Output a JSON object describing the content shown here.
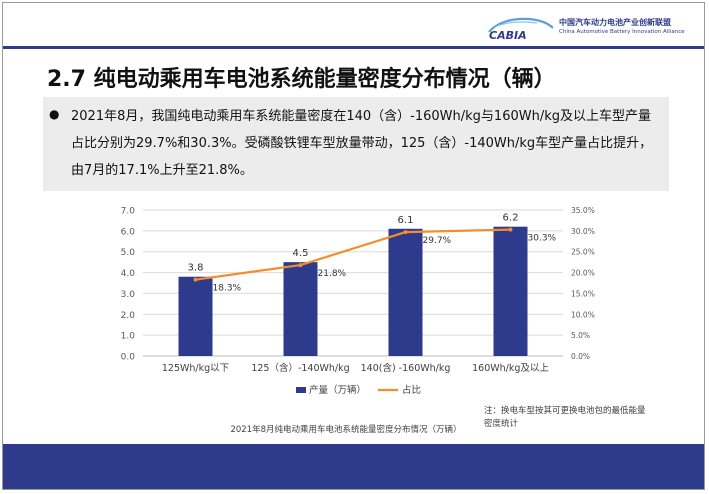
{
  "header": {
    "logo_mark": "CABIA",
    "logo_cn": "中国汽车动力电池产业创新联盟",
    "logo_en": "China Automotive Battery Innovation Alliance"
  },
  "slide": {
    "title": "2.7 纯电动乘用车电池系统能量密度分布情况（辆）",
    "bullet": "2021年8月，我国纯电动乘用车系统能量密度在140（含）-160Wh/kg与160Wh/kg及以上车型产量占比分别为29.7%和30.3%。受磷酸铁锂车型放量带动，125（含）-140Wh/kg车型产量占比提升，由7月的17.1%上升至21.8%。"
  },
  "chart_data": {
    "type": "bar+line",
    "categories": [
      "125Wh/kg以下",
      "125（含）-140Wh/kg",
      "140(含) -160Wh/kg",
      "160Wh/kg及以上"
    ],
    "series": [
      {
        "name": "产量（万辆）",
        "type": "bar",
        "axis": "left",
        "values": [
          3.8,
          4.5,
          6.1,
          6.2
        ],
        "labels": [
          "3.8",
          "4.5",
          "6.1",
          "6.2"
        ],
        "color": "#2e3a8c"
      },
      {
        "name": "占比",
        "type": "line",
        "axis": "right",
        "values": [
          18.3,
          21.8,
          29.7,
          30.3
        ],
        "labels": [
          "18.3%",
          "21.8%",
          "29.7%",
          "30.3%"
        ],
        "color": "#f28e2b"
      }
    ],
    "y_left": {
      "min": 0,
      "max": 7,
      "ticks": [
        "0.0",
        "1.0",
        "2.0",
        "3.0",
        "4.0",
        "5.0",
        "6.0",
        "7.0"
      ]
    },
    "y_right": {
      "min": 0,
      "max": 35,
      "ticks": [
        "0.0%",
        "5.0%",
        "10.0%",
        "15.0%",
        "20.0%",
        "25.0%",
        "30.0%",
        "35.0%"
      ]
    },
    "legend": "bottom",
    "caption": "2021年8月纯电动乘用车电池系统能量密度分布情况（万辆）",
    "note_line1": "注：换电车型按其可更换电池包的最低能量",
    "note_line2": "密度统计"
  },
  "colors": {
    "accent": "#2e3a8c",
    "line": "#f28e2b",
    "panel": "#ececec"
  }
}
